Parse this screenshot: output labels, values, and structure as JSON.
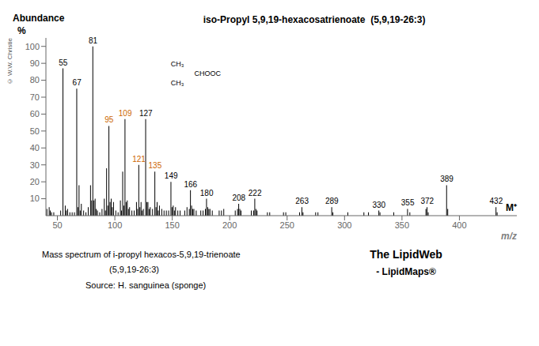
{
  "chart_data": {
    "type": "bar",
    "title": "iso-Propyl 5,9,19-hexacosatrienoate  (5,9,19-26:3)",
    "xlabel": "m/z",
    "ylabel": "Abundance",
    "color": "#000000",
    "grid": false,
    "xlim": [
      40,
      450
    ],
    "ylim": [
      0,
      105
    ],
    "xticks": [
      50,
      100,
      150,
      200,
      250,
      300,
      350,
      400
    ],
    "yticks": [
      10,
      20,
      30,
      40,
      50,
      60,
      70,
      80,
      90,
      100
    ],
    "x": [
      41,
      43,
      44,
      45,
      47,
      53,
      55,
      57,
      58,
      59,
      61,
      63,
      65,
      67,
      68,
      69,
      70,
      71,
      73,
      75,
      77,
      79,
      80,
      81,
      82,
      83,
      84,
      85,
      87,
      89,
      91,
      92,
      93,
      94,
      95,
      96,
      97,
      98,
      99,
      101,
      103,
      105,
      106,
      107,
      108,
      109,
      110,
      111,
      112,
      113,
      115,
      117,
      119,
      120,
      121,
      122,
      123,
      124,
      125,
      127,
      128,
      129,
      130,
      131,
      133,
      135,
      136,
      137,
      138,
      139,
      141,
      143,
      145,
      147,
      149,
      150,
      151,
      152,
      153,
      155,
      157,
      161,
      163,
      165,
      166,
      167,
      168,
      169,
      171,
      175,
      177,
      179,
      180,
      181,
      182,
      183,
      185,
      191,
      193,
      195,
      205,
      207,
      208,
      209,
      210,
      219,
      221,
      222,
      223,
      224,
      233,
      235,
      247,
      249,
      261,
      263,
      264,
      275,
      277,
      289,
      290,
      303,
      317,
      321,
      330,
      331,
      343,
      355,
      357,
      371,
      372,
      373,
      389,
      390,
      432,
      433
    ],
    "values": [
      4,
      5,
      3,
      2,
      2,
      3,
      87,
      6,
      3,
      4,
      2,
      2,
      2,
      75,
      5,
      18,
      3,
      7,
      3,
      2,
      5,
      18,
      9,
      100,
      9,
      10,
      4,
      3,
      2,
      4,
      10,
      3,
      28,
      6,
      53,
      8,
      10,
      5,
      8,
      3,
      2,
      9,
      3,
      26,
      6,
      57,
      8,
      9,
      4,
      5,
      3,
      3,
      8,
      4,
      30,
      5,
      8,
      3,
      4,
      57,
      8,
      8,
      4,
      5,
      4,
      26,
      5,
      8,
      3,
      6,
      4,
      3,
      3,
      3,
      20,
      5,
      6,
      3,
      5,
      3,
      3,
      3,
      5,
      4,
      15,
      6,
      4,
      4,
      3,
      3,
      3,
      4,
      10,
      5,
      4,
      4,
      3,
      3,
      3,
      4,
      3,
      4,
      7,
      4,
      3,
      3,
      3,
      10,
      4,
      3,
      2,
      2,
      2,
      2,
      2,
      5,
      2,
      2,
      2,
      5,
      2,
      2,
      2,
      2,
      3,
      2,
      2,
      4,
      2,
      4,
      5,
      2,
      18,
      4,
      5,
      2
    ],
    "annotations": [
      {
        "text": "55",
        "x": 55,
        "y": 87,
        "color": "#000000"
      },
      {
        "text": "67",
        "x": 67,
        "y": 75,
        "color": "#000000"
      },
      {
        "text": "81",
        "x": 81,
        "y": 100,
        "color": "#000000"
      },
      {
        "text": "95",
        "x": 95,
        "y": 53,
        "color": "#CC6600"
      },
      {
        "text": "109",
        "x": 109,
        "y": 57,
        "color": "#CC6600"
      },
      {
        "text": "121",
        "x": 121,
        "y": 30,
        "color": "#CC6600"
      },
      {
        "text": "127",
        "x": 127,
        "y": 57,
        "color": "#000000"
      },
      {
        "text": "135",
        "x": 135,
        "y": 26,
        "color": "#CC6600"
      },
      {
        "text": "149",
        "x": 149,
        "y": 20,
        "color": "#000000"
      },
      {
        "text": "166",
        "x": 166,
        "y": 15,
        "color": "#000000"
      },
      {
        "text": "180",
        "x": 180,
        "y": 10,
        "color": "#000000"
      },
      {
        "text": "208",
        "x": 208,
        "y": 7,
        "color": "#000000"
      },
      {
        "text": "222",
        "x": 222,
        "y": 10,
        "color": "#000000"
      },
      {
        "text": "263",
        "x": 263,
        "y": 5,
        "color": "#000000"
      },
      {
        "text": "289",
        "x": 289,
        "y": 5,
        "color": "#000000"
      },
      {
        "text": "330",
        "x": 330,
        "y": 3,
        "color": "#000000"
      },
      {
        "text": "355",
        "x": 355,
        "y": 4,
        "color": "#000000"
      },
      {
        "text": "372",
        "x": 372,
        "y": 5,
        "color": "#000000"
      },
      {
        "text": "389",
        "x": 389,
        "y": 18,
        "color": "#000000"
      },
      {
        "text": "432",
        "x": 432,
        "y": 5,
        "color": "#000000"
      },
      {
        "text": "M⁺",
        "x": 432,
        "y": 5,
        "color": "#000000"
      },
      {
        "text": "CH₃"
      },
      {
        "text": "CH₃"
      },
      {
        "text": "CHOOC"
      },
      {
        "text": "© W.W. Christie"
      },
      {
        "text": "Mass spectrum of i-propyl hexacos-5,9,19-trienoate"
      },
      {
        "text": "(5,9,19-26:3)"
      },
      {
        "text": "Source: H. sanguinea (sponge)"
      },
      {
        "text": "The LipidWeb"
      },
      {
        "text": "- LipidMaps®"
      },
      {
        "text": "%"
      }
    ]
  }
}
